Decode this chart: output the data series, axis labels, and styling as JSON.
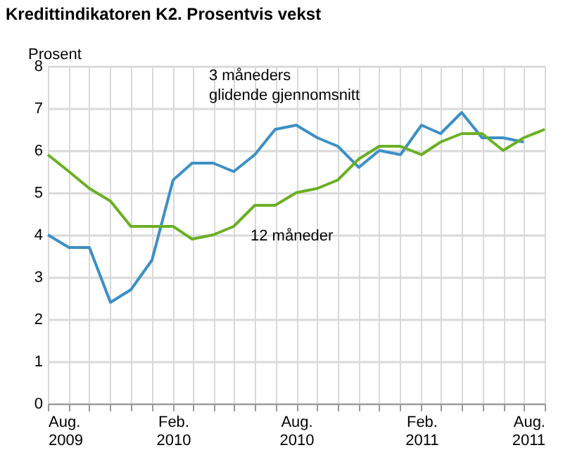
{
  "chart_data": {
    "type": "line",
    "title": "Kredittindikatoren K2. Prosentvis vekst",
    "ylabel": "Prosent",
    "x": [
      "2009-08",
      "2009-09",
      "2009-10",
      "2009-11",
      "2009-12",
      "2010-01",
      "2010-02",
      "2010-03",
      "2010-04",
      "2010-05",
      "2010-06",
      "2010-07",
      "2010-08",
      "2010-09",
      "2010-10",
      "2010-11",
      "2010-12",
      "2011-01",
      "2011-02",
      "2011-03",
      "2011-04",
      "2011-05",
      "2011-06",
      "2011-07",
      "2011-08"
    ],
    "series": [
      {
        "name": "3 måneders glidende gjennomsnitt",
        "color": "#3d8fc6",
        "values": [
          4.0,
          3.7,
          3.7,
          2.4,
          2.7,
          3.4,
          5.3,
          5.7,
          5.7,
          5.5,
          5.9,
          6.5,
          6.6,
          6.3,
          6.1,
          5.6,
          6.0,
          5.9,
          6.6,
          6.4,
          6.9,
          6.3,
          6.3,
          6.2,
          null
        ]
      },
      {
        "name": "12 måneder",
        "color": "#6ab023",
        "values": [
          5.9,
          5.5,
          5.1,
          4.8,
          4.2,
          4.2,
          4.2,
          3.9,
          4.0,
          4.2,
          4.7,
          4.7,
          5.0,
          5.1,
          5.3,
          5.8,
          6.1,
          6.1,
          5.9,
          6.2,
          6.4,
          6.4,
          6.0,
          6.3,
          6.5
        ]
      }
    ],
    "xlim": [
      "2009-08",
      "2011-08"
    ],
    "xticks": [
      {
        "value": "2009-08",
        "label": "Aug. 2009"
      },
      {
        "value": "2009-09",
        "label": null
      },
      {
        "value": "2009-10",
        "label": null
      },
      {
        "value": "2009-11",
        "label": null
      },
      {
        "value": "2009-12",
        "label": null
      },
      {
        "value": "2010-01",
        "label": null
      },
      {
        "value": "2010-02",
        "label": "Feb. 2010"
      },
      {
        "value": "2010-03",
        "label": null
      },
      {
        "value": "2010-04",
        "label": null
      },
      {
        "value": "2010-05",
        "label": null
      },
      {
        "value": "2010-06",
        "label": null
      },
      {
        "value": "2010-07",
        "label": null
      },
      {
        "value": "2010-08",
        "label": "Aug. 2010"
      },
      {
        "value": "2010-09",
        "label": null
      },
      {
        "value": "2010-10",
        "label": null
      },
      {
        "value": "2010-11",
        "label": null
      },
      {
        "value": "2010-12",
        "label": null
      },
      {
        "value": "2011-01",
        "label": null
      },
      {
        "value": "2011-02",
        "label": "Feb. 2011"
      },
      {
        "value": "2011-03",
        "label": null
      },
      {
        "value": "2011-04",
        "label": null
      },
      {
        "value": "2011-05",
        "label": null
      },
      {
        "value": "2011-06",
        "label": null
      },
      {
        "value": "2011-07",
        "label": null
      },
      {
        "value": "2011-08",
        "label": "Aug. 2011"
      }
    ],
    "ylim": [
      0,
      8
    ],
    "yticks": [
      0,
      1,
      2,
      3,
      4,
      5,
      6,
      7,
      8
    ],
    "grid": true,
    "legend": false,
    "marker": "none",
    "line_style": "solid"
  }
}
